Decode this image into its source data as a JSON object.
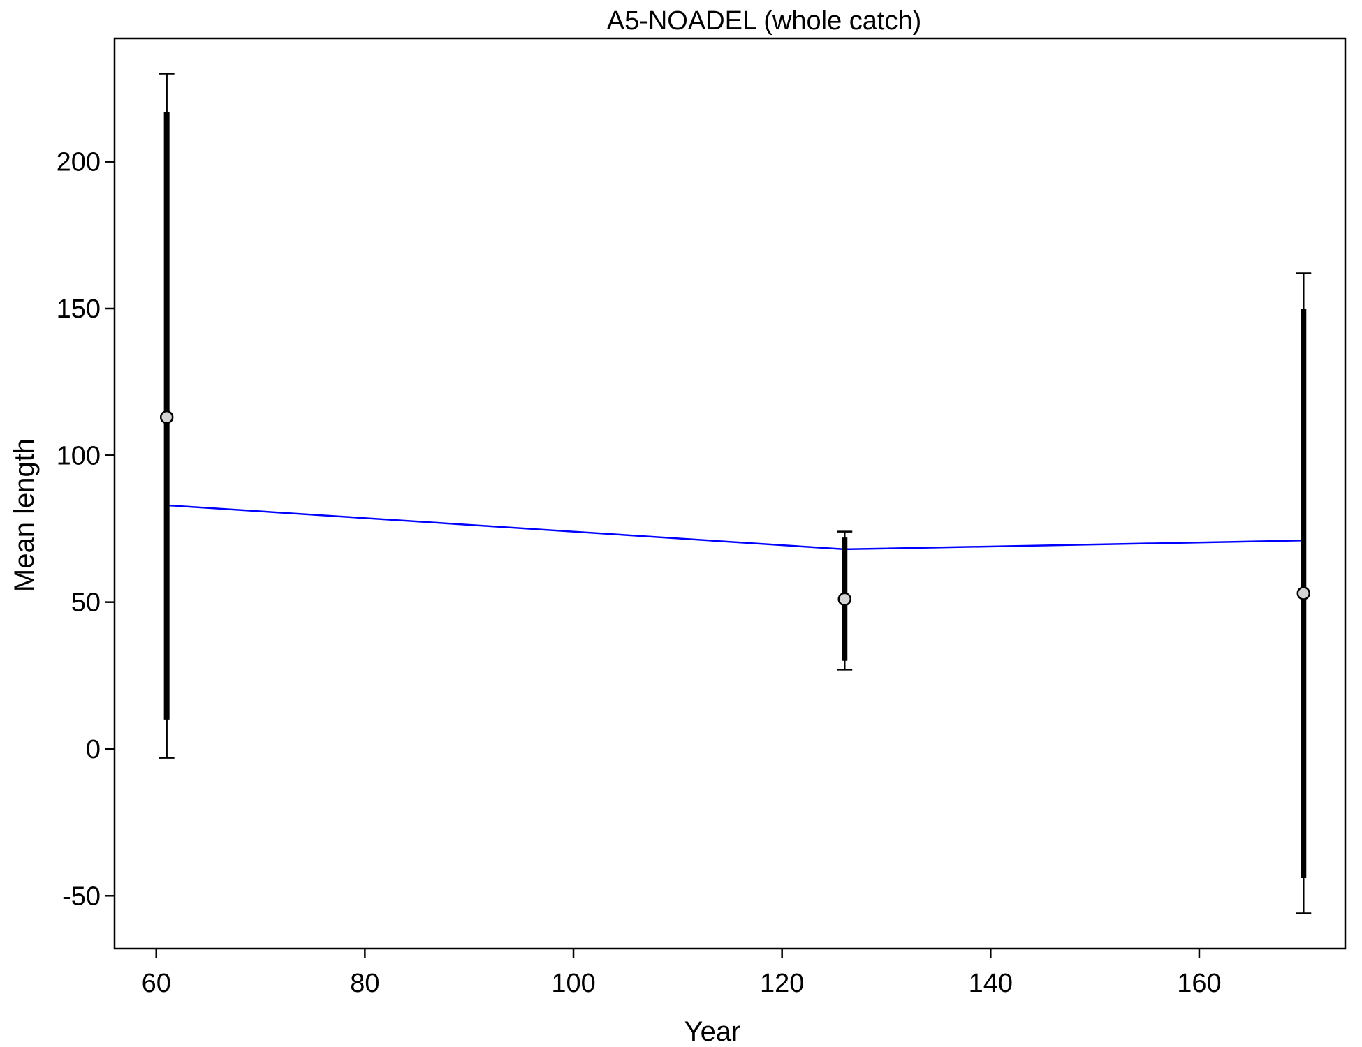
{
  "chart_data": {
    "type": "scatter",
    "title": "A5-NOADEL (whole catch)",
    "xlabel": "Year",
    "ylabel": "Mean length",
    "xlim": [
      56,
      174
    ],
    "ylim": [
      -68,
      242
    ],
    "x_ticks": [
      60,
      80,
      100,
      120,
      140,
      160
    ],
    "x_tick_labels": [
      "60",
      "80",
      "100",
      "120",
      "140",
      "160"
    ],
    "y_ticks": [
      -50,
      0,
      50,
      100,
      150,
      200
    ],
    "y_tick_labels": [
      "-50",
      "0",
      "50",
      "100",
      "150",
      "200"
    ],
    "grid": false,
    "series": [
      {
        "kind": "observed",
        "x": [
          61,
          126,
          170
        ],
        "y": [
          113,
          51,
          53
        ],
        "inner_interval_low": [
          10,
          30,
          -44
        ],
        "inner_interval_high": [
          217,
          72,
          150
        ],
        "outer_interval_low": [
          -3,
          27,
          -56
        ],
        "outer_interval_high": [
          230,
          74,
          162
        ],
        "color": "#000000",
        "marker_fill": "#d3d3d3"
      },
      {
        "kind": "expected",
        "x": [
          61,
          126,
          170
        ],
        "y": [
          83,
          68,
          71
        ],
        "color": "#0000ff"
      }
    ]
  }
}
